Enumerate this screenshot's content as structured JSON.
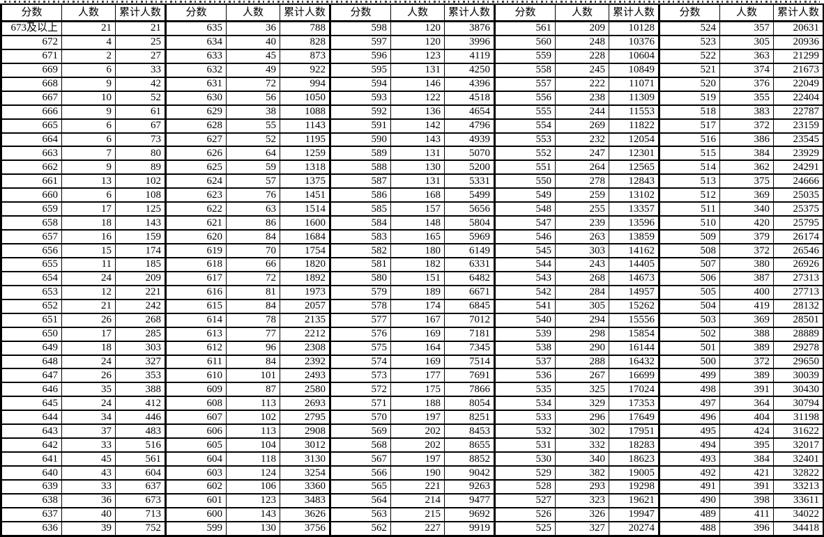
{
  "table": {
    "column_headers": [
      "分数",
      "人数",
      "累计人数"
    ],
    "groups": [
      {
        "rows": [
          [
            "673及以上",
            21,
            21
          ],
          [
            "672",
            4,
            25
          ],
          [
            "671",
            2,
            27
          ],
          [
            "669",
            6,
            33
          ],
          [
            "668",
            9,
            42
          ],
          [
            "667",
            10,
            52
          ],
          [
            "666",
            9,
            61
          ],
          [
            "665",
            6,
            67
          ],
          [
            "664",
            6,
            73
          ],
          [
            "663",
            7,
            80
          ],
          [
            "662",
            9,
            89
          ],
          [
            "661",
            13,
            102
          ],
          [
            "660",
            6,
            108
          ],
          [
            "659",
            17,
            125
          ],
          [
            "658",
            18,
            143
          ],
          [
            "657",
            16,
            159
          ],
          [
            "656",
            15,
            174
          ],
          [
            "655",
            11,
            185
          ],
          [
            "654",
            24,
            209
          ],
          [
            "653",
            12,
            221
          ],
          [
            "652",
            21,
            242
          ],
          [
            "651",
            26,
            268
          ],
          [
            "650",
            17,
            285
          ],
          [
            "649",
            18,
            303
          ],
          [
            "648",
            24,
            327
          ],
          [
            "647",
            26,
            353
          ],
          [
            "646",
            35,
            388
          ],
          [
            "645",
            24,
            412
          ],
          [
            "644",
            34,
            446
          ],
          [
            "643",
            37,
            483
          ],
          [
            "642",
            33,
            516
          ],
          [
            "641",
            45,
            561
          ],
          [
            "640",
            43,
            604
          ],
          [
            "639",
            33,
            637
          ],
          [
            "638",
            36,
            673
          ],
          [
            "637",
            40,
            713
          ],
          [
            "636",
            39,
            752
          ]
        ]
      },
      {
        "rows": [
          [
            "635",
            36,
            788
          ],
          [
            "634",
            40,
            828
          ],
          [
            "633",
            45,
            873
          ],
          [
            "632",
            49,
            922
          ],
          [
            "631",
            72,
            994
          ],
          [
            "630",
            56,
            1050
          ],
          [
            "629",
            38,
            1088
          ],
          [
            "628",
            55,
            1143
          ],
          [
            "627",
            52,
            1195
          ],
          [
            "626",
            64,
            1259
          ],
          [
            "625",
            59,
            1318
          ],
          [
            "624",
            57,
            1375
          ],
          [
            "623",
            76,
            1451
          ],
          [
            "622",
            63,
            1514
          ],
          [
            "621",
            86,
            1600
          ],
          [
            "620",
            84,
            1684
          ],
          [
            "619",
            70,
            1754
          ],
          [
            "618",
            66,
            1820
          ],
          [
            "617",
            72,
            1892
          ],
          [
            "616",
            81,
            1973
          ],
          [
            "615",
            84,
            2057
          ],
          [
            "614",
            78,
            2135
          ],
          [
            "613",
            77,
            2212
          ],
          [
            "612",
            96,
            2308
          ],
          [
            "611",
            84,
            2392
          ],
          [
            "610",
            101,
            2493
          ],
          [
            "609",
            87,
            2580
          ],
          [
            "608",
            113,
            2693
          ],
          [
            "607",
            102,
            2795
          ],
          [
            "606",
            113,
            2908
          ],
          [
            "605",
            104,
            3012
          ],
          [
            "604",
            118,
            3130
          ],
          [
            "603",
            124,
            3254
          ],
          [
            "602",
            106,
            3360
          ],
          [
            "601",
            123,
            3483
          ],
          [
            "600",
            143,
            3626
          ],
          [
            "599",
            130,
            3756
          ]
        ]
      },
      {
        "rows": [
          [
            "598",
            120,
            3876
          ],
          [
            "597",
            120,
            3996
          ],
          [
            "596",
            123,
            4119
          ],
          [
            "595",
            131,
            4250
          ],
          [
            "594",
            146,
            4396
          ],
          [
            "593",
            122,
            4518
          ],
          [
            "592",
            136,
            4654
          ],
          [
            "591",
            142,
            4796
          ],
          [
            "590",
            143,
            4939
          ],
          [
            "589",
            131,
            5070
          ],
          [
            "588",
            130,
            5200
          ],
          [
            "587",
            131,
            5331
          ],
          [
            "586",
            168,
            5499
          ],
          [
            "585",
            157,
            5656
          ],
          [
            "584",
            148,
            5804
          ],
          [
            "583",
            165,
            5969
          ],
          [
            "582",
            180,
            6149
          ],
          [
            "581",
            182,
            6331
          ],
          [
            "580",
            151,
            6482
          ],
          [
            "579",
            189,
            6671
          ],
          [
            "578",
            174,
            6845
          ],
          [
            "577",
            167,
            7012
          ],
          [
            "576",
            169,
            7181
          ],
          [
            "575",
            164,
            7345
          ],
          [
            "574",
            169,
            7514
          ],
          [
            "573",
            177,
            7691
          ],
          [
            "572",
            175,
            7866
          ],
          [
            "571",
            188,
            8054
          ],
          [
            "570",
            197,
            8251
          ],
          [
            "569",
            202,
            8453
          ],
          [
            "568",
            202,
            8655
          ],
          [
            "567",
            197,
            8852
          ],
          [
            "566",
            190,
            9042
          ],
          [
            "565",
            221,
            9263
          ],
          [
            "564",
            214,
            9477
          ],
          [
            "563",
            215,
            9692
          ],
          [
            "562",
            227,
            9919
          ]
        ]
      },
      {
        "rows": [
          [
            "561",
            209,
            10128
          ],
          [
            "560",
            248,
            10376
          ],
          [
            "559",
            228,
            10604
          ],
          [
            "558",
            245,
            10849
          ],
          [
            "557",
            222,
            11071
          ],
          [
            "556",
            238,
            11309
          ],
          [
            "555",
            244,
            11553
          ],
          [
            "554",
            269,
            11822
          ],
          [
            "553",
            232,
            12054
          ],
          [
            "552",
            247,
            12301
          ],
          [
            "551",
            264,
            12565
          ],
          [
            "550",
            278,
            12843
          ],
          [
            "549",
            259,
            13102
          ],
          [
            "548",
            255,
            13357
          ],
          [
            "547",
            239,
            13596
          ],
          [
            "546",
            263,
            13859
          ],
          [
            "545",
            303,
            14162
          ],
          [
            "544",
            243,
            14405
          ],
          [
            "543",
            268,
            14673
          ],
          [
            "542",
            284,
            14957
          ],
          [
            "541",
            305,
            15262
          ],
          [
            "540",
            294,
            15556
          ],
          [
            "539",
            298,
            15854
          ],
          [
            "538",
            290,
            16144
          ],
          [
            "537",
            288,
            16432
          ],
          [
            "536",
            267,
            16699
          ],
          [
            "535",
            325,
            17024
          ],
          [
            "534",
            329,
            17353
          ],
          [
            "533",
            296,
            17649
          ],
          [
            "532",
            302,
            17951
          ],
          [
            "531",
            332,
            18283
          ],
          [
            "530",
            340,
            18623
          ],
          [
            "529",
            382,
            19005
          ],
          [
            "528",
            293,
            19298
          ],
          [
            "527",
            323,
            19621
          ],
          [
            "526",
            326,
            19947
          ],
          [
            "525",
            327,
            20274
          ]
        ]
      },
      {
        "rows": [
          [
            "524",
            357,
            20631
          ],
          [
            "523",
            305,
            20936
          ],
          [
            "522",
            363,
            21299
          ],
          [
            "521",
            374,
            21673
          ],
          [
            "520",
            376,
            22049
          ],
          [
            "519",
            355,
            22404
          ],
          [
            "518",
            383,
            22787
          ],
          [
            "517",
            372,
            23159
          ],
          [
            "516",
            386,
            23545
          ],
          [
            "515",
            384,
            23929
          ],
          [
            "514",
            362,
            24291
          ],
          [
            "513",
            375,
            24666
          ],
          [
            "512",
            369,
            25035
          ],
          [
            "511",
            340,
            25375
          ],
          [
            "510",
            420,
            25795
          ],
          [
            "509",
            379,
            26174
          ],
          [
            "508",
            372,
            26546
          ],
          [
            "507",
            380,
            26926
          ],
          [
            "506",
            387,
            27313
          ],
          [
            "505",
            400,
            27713
          ],
          [
            "504",
            419,
            28132
          ],
          [
            "503",
            369,
            28501
          ],
          [
            "502",
            388,
            28889
          ],
          [
            "501",
            389,
            29278
          ],
          [
            "500",
            372,
            29650
          ],
          [
            "499",
            389,
            30039
          ],
          [
            "498",
            391,
            30430
          ],
          [
            "497",
            364,
            30794
          ],
          [
            "496",
            404,
            31198
          ],
          [
            "495",
            424,
            31622
          ],
          [
            "494",
            395,
            32017
          ],
          [
            "493",
            384,
            32401
          ],
          [
            "492",
            421,
            32822
          ],
          [
            "491",
            391,
            33213
          ],
          [
            "490",
            398,
            33611
          ],
          [
            "489",
            411,
            34022
          ],
          [
            "488",
            396,
            34418
          ]
        ]
      }
    ]
  },
  "colors": {
    "grid": "#000000",
    "background": "#ffffff",
    "text": "#000000"
  }
}
